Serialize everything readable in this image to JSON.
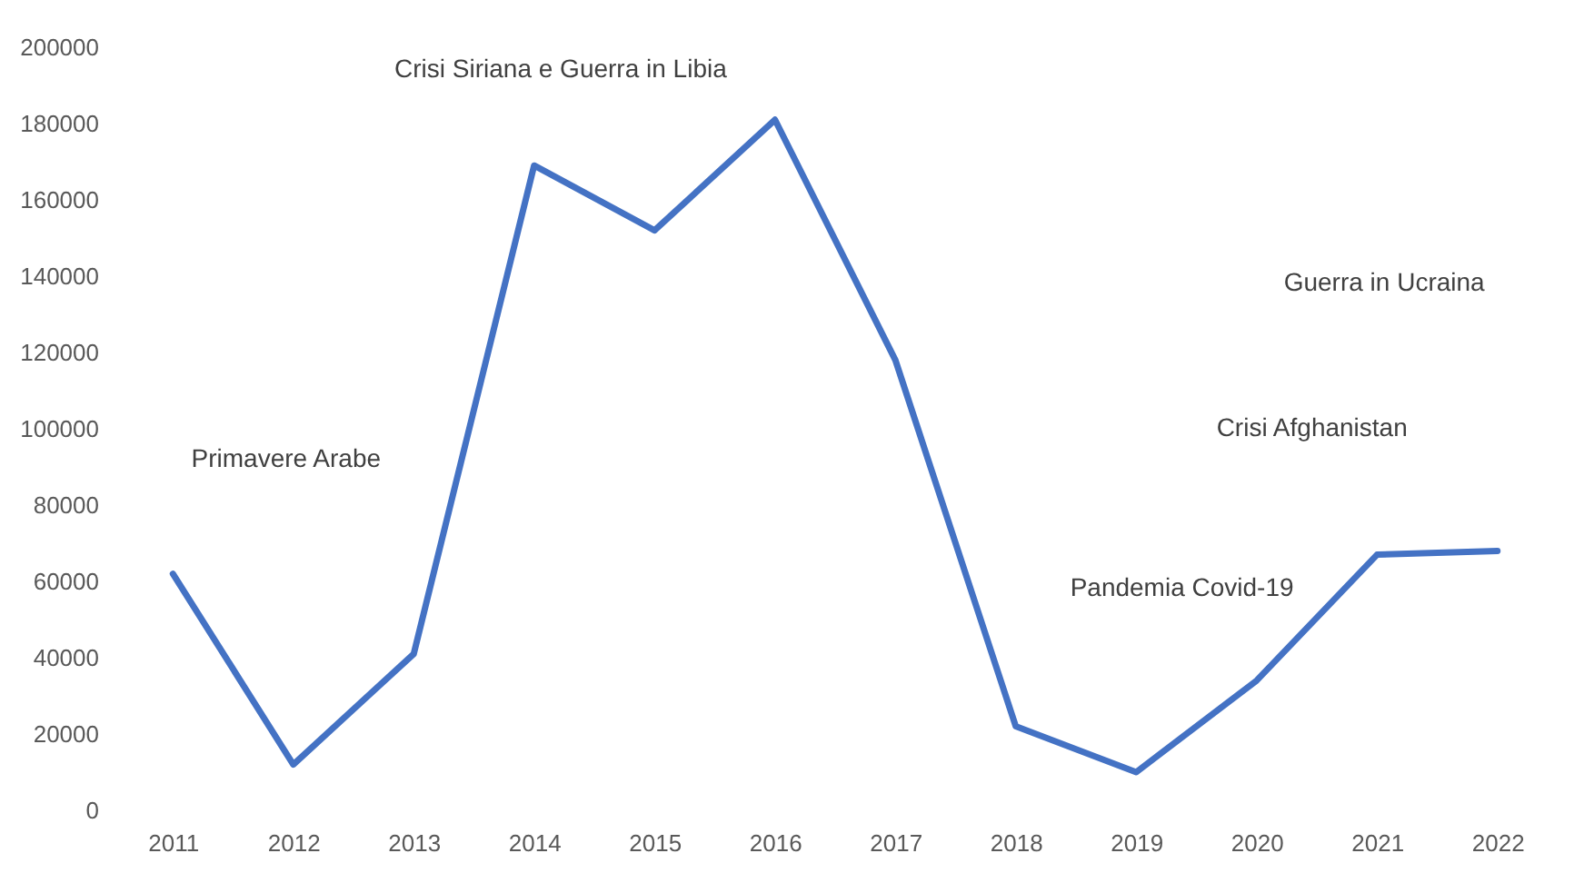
{
  "chart_data": {
    "type": "line",
    "categories": [
      "2011",
      "2012",
      "2013",
      "2014",
      "2015",
      "2016",
      "2017",
      "2018",
      "2019",
      "2020",
      "2021",
      "2022"
    ],
    "series": [
      {
        "color": "#4472c4",
        "values": [
          62000,
          12000,
          41000,
          169000,
          152000,
          181000,
          118000,
          22000,
          10000,
          34000,
          67000,
          68000
        ]
      }
    ],
    "ylim": [
      0,
      200000
    ],
    "yticks": [
      0,
      20000,
      40000,
      60000,
      80000,
      100000,
      120000,
      140000,
      160000,
      180000,
      200000
    ],
    "grid": false,
    "marker": "none",
    "line_style": "solid",
    "annotations": [
      "Primavere Arabe",
      "Crisi Siriana e Guerra in Libia",
      "Guerra in Ucraina",
      "Crisi Afghanistan",
      "Pandemia Covid-19"
    ]
  }
}
